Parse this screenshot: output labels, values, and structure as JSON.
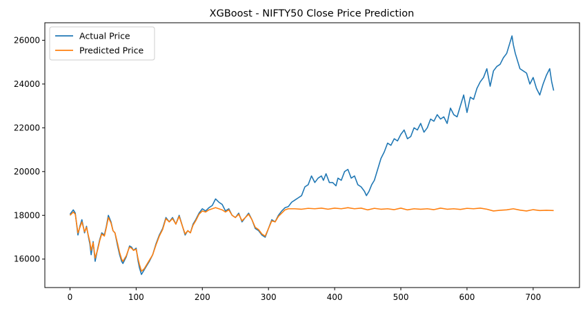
{
  "chart_data": {
    "type": "line",
    "title": "XGBoost - NIFTY50 Close Price Prediction",
    "xlabel": "",
    "ylabel": "",
    "xlim": [
      -38,
      770
    ],
    "ylim": [
      14700,
      26800
    ],
    "xticks": [
      0,
      100,
      200,
      300,
      400,
      500,
      600,
      700
    ],
    "yticks": [
      16000,
      18000,
      20000,
      22000,
      24000,
      26000
    ],
    "legend_position": "upper-left",
    "grid": false,
    "series": [
      {
        "name": "Actual Price",
        "color": "#1f77b4",
        "points": [
          [
            0,
            18050
          ],
          [
            5,
            18250
          ],
          [
            8,
            18100
          ],
          [
            12,
            17100
          ],
          [
            15,
            17500
          ],
          [
            18,
            17800
          ],
          [
            22,
            17200
          ],
          [
            25,
            17500
          ],
          [
            28,
            17000
          ],
          [
            30,
            16700
          ],
          [
            32,
            16200
          ],
          [
            35,
            16800
          ],
          [
            38,
            15900
          ],
          [
            42,
            16500
          ],
          [
            45,
            16900
          ],
          [
            48,
            17200
          ],
          [
            52,
            17100
          ],
          [
            55,
            17500
          ],
          [
            58,
            18000
          ],
          [
            62,
            17700
          ],
          [
            65,
            17300
          ],
          [
            68,
            17200
          ],
          [
            70,
            16900
          ],
          [
            72,
            16600
          ],
          [
            75,
            16200
          ],
          [
            78,
            15900
          ],
          [
            80,
            15800
          ],
          [
            85,
            16100
          ],
          [
            88,
            16400
          ],
          [
            90,
            16600
          ],
          [
            93,
            16550
          ],
          [
            96,
            16400
          ],
          [
            100,
            16500
          ],
          [
            103,
            15900
          ],
          [
            105,
            15600
          ],
          [
            108,
            15300
          ],
          [
            112,
            15500
          ],
          [
            116,
            15700
          ],
          [
            120,
            15900
          ],
          [
            125,
            16200
          ],
          [
            130,
            16700
          ],
          [
            135,
            17100
          ],
          [
            140,
            17400
          ],
          [
            145,
            17900
          ],
          [
            150,
            17700
          ],
          [
            155,
            17900
          ],
          [
            160,
            17600
          ],
          [
            165,
            18000
          ],
          [
            170,
            17500
          ],
          [
            174,
            17100
          ],
          [
            178,
            17300
          ],
          [
            182,
            17200
          ],
          [
            186,
            17600
          ],
          [
            190,
            17800
          ],
          [
            195,
            18100
          ],
          [
            200,
            18300
          ],
          [
            205,
            18200
          ],
          [
            210,
            18350
          ],
          [
            215,
            18450
          ],
          [
            220,
            18750
          ],
          [
            225,
            18600
          ],
          [
            230,
            18500
          ],
          [
            235,
            18200
          ],
          [
            240,
            18300
          ],
          [
            245,
            18000
          ],
          [
            250,
            17900
          ],
          [
            255,
            18100
          ],
          [
            260,
            17700
          ],
          [
            265,
            17900
          ],
          [
            270,
            18100
          ],
          [
            275,
            17800
          ],
          [
            280,
            17400
          ],
          [
            285,
            17300
          ],
          [
            290,
            17100
          ],
          [
            295,
            17000
          ],
          [
            300,
            17400
          ],
          [
            305,
            17800
          ],
          [
            310,
            17700
          ],
          [
            315,
            18000
          ],
          [
            320,
            18200
          ],
          [
            325,
            18350
          ],
          [
            330,
            18400
          ],
          [
            335,
            18600
          ],
          [
            340,
            18700
          ],
          [
            345,
            18800
          ],
          [
            350,
            18900
          ],
          [
            355,
            19300
          ],
          [
            360,
            19400
          ],
          [
            365,
            19800
          ],
          [
            370,
            19500
          ],
          [
            375,
            19700
          ],
          [
            380,
            19800
          ],
          [
            383,
            19600
          ],
          [
            387,
            19900
          ],
          [
            392,
            19500
          ],
          [
            397,
            19500
          ],
          [
            402,
            19350
          ],
          [
            405,
            19700
          ],
          [
            410,
            19600
          ],
          [
            415,
            20000
          ],
          [
            420,
            20100
          ],
          [
            425,
            19700
          ],
          [
            430,
            19800
          ],
          [
            435,
            19400
          ],
          [
            440,
            19300
          ],
          [
            445,
            19100
          ],
          [
            448,
            18900
          ],
          [
            452,
            19100
          ],
          [
            456,
            19400
          ],
          [
            460,
            19600
          ],
          [
            465,
            20100
          ],
          [
            470,
            20600
          ],
          [
            475,
            20900
          ],
          [
            480,
            21300
          ],
          [
            485,
            21200
          ],
          [
            490,
            21500
          ],
          [
            495,
            21400
          ],
          [
            500,
            21700
          ],
          [
            505,
            21900
          ],
          [
            510,
            21500
          ],
          [
            515,
            21600
          ],
          [
            520,
            22000
          ],
          [
            525,
            21900
          ],
          [
            530,
            22200
          ],
          [
            535,
            21800
          ],
          [
            540,
            22000
          ],
          [
            545,
            22400
          ],
          [
            550,
            22300
          ],
          [
            555,
            22600
          ],
          [
            560,
            22400
          ],
          [
            565,
            22500
          ],
          [
            570,
            22200
          ],
          [
            575,
            22900
          ],
          [
            580,
            22600
          ],
          [
            585,
            22500
          ],
          [
            590,
            23000
          ],
          [
            595,
            23500
          ],
          [
            600,
            22700
          ],
          [
            605,
            23400
          ],
          [
            610,
            23300
          ],
          [
            615,
            23800
          ],
          [
            620,
            24100
          ],
          [
            625,
            24300
          ],
          [
            630,
            24700
          ],
          [
            635,
            23900
          ],
          [
            640,
            24600
          ],
          [
            645,
            24800
          ],
          [
            650,
            24900
          ],
          [
            655,
            25200
          ],
          [
            660,
            25400
          ],
          [
            665,
            25900
          ],
          [
            668,
            26200
          ],
          [
            670,
            25800
          ],
          [
            673,
            25400
          ],
          [
            676,
            25100
          ],
          [
            680,
            24700
          ],
          [
            685,
            24600
          ],
          [
            690,
            24500
          ],
          [
            695,
            24000
          ],
          [
            700,
            24300
          ],
          [
            705,
            23800
          ],
          [
            710,
            23500
          ],
          [
            715,
            24000
          ],
          [
            720,
            24400
          ],
          [
            725,
            24700
          ],
          [
            728,
            24100
          ],
          [
            731,
            23700
          ]
        ]
      },
      {
        "name": "Predicted Price",
        "color": "#ff7f0e",
        "points": [
          [
            0,
            18000
          ],
          [
            5,
            18150
          ],
          [
            8,
            18050
          ],
          [
            12,
            17200
          ],
          [
            15,
            17450
          ],
          [
            18,
            17700
          ],
          [
            22,
            17250
          ],
          [
            25,
            17450
          ],
          [
            28,
            17050
          ],
          [
            30,
            16800
          ],
          [
            32,
            16400
          ],
          [
            35,
            16750
          ],
          [
            38,
            16050
          ],
          [
            42,
            16450
          ],
          [
            45,
            16850
          ],
          [
            48,
            17150
          ],
          [
            52,
            17050
          ],
          [
            55,
            17450
          ],
          [
            58,
            17900
          ],
          [
            62,
            17650
          ],
          [
            65,
            17300
          ],
          [
            68,
            17200
          ],
          [
            70,
            16950
          ],
          [
            72,
            16700
          ],
          [
            75,
            16300
          ],
          [
            78,
            16000
          ],
          [
            80,
            15900
          ],
          [
            85,
            16150
          ],
          [
            88,
            16400
          ],
          [
            90,
            16550
          ],
          [
            93,
            16500
          ],
          [
            96,
            16400
          ],
          [
            100,
            16450
          ],
          [
            103,
            16000
          ],
          [
            105,
            15750
          ],
          [
            108,
            15450
          ],
          [
            112,
            15550
          ],
          [
            116,
            15750
          ],
          [
            120,
            15950
          ],
          [
            125,
            16200
          ],
          [
            130,
            16650
          ],
          [
            135,
            17050
          ],
          [
            140,
            17350
          ],
          [
            145,
            17850
          ],
          [
            150,
            17700
          ],
          [
            155,
            17850
          ],
          [
            160,
            17600
          ],
          [
            165,
            17950
          ],
          [
            170,
            17500
          ],
          [
            174,
            17150
          ],
          [
            178,
            17300
          ],
          [
            182,
            17200
          ],
          [
            186,
            17550
          ],
          [
            190,
            17750
          ],
          [
            195,
            18050
          ],
          [
            200,
            18200
          ],
          [
            205,
            18150
          ],
          [
            210,
            18250
          ],
          [
            215,
            18300
          ],
          [
            220,
            18350
          ],
          [
            225,
            18300
          ],
          [
            230,
            18250
          ],
          [
            235,
            18150
          ],
          [
            240,
            18250
          ],
          [
            245,
            18000
          ],
          [
            250,
            17900
          ],
          [
            255,
            18050
          ],
          [
            260,
            17750
          ],
          [
            265,
            17900
          ],
          [
            270,
            18050
          ],
          [
            275,
            17800
          ],
          [
            280,
            17450
          ],
          [
            285,
            17350
          ],
          [
            290,
            17150
          ],
          [
            295,
            17050
          ],
          [
            300,
            17400
          ],
          [
            305,
            17750
          ],
          [
            310,
            17700
          ],
          [
            315,
            17950
          ],
          [
            320,
            18100
          ],
          [
            325,
            18250
          ],
          [
            330,
            18300
          ],
          [
            340,
            18300
          ],
          [
            350,
            18280
          ],
          [
            360,
            18320
          ],
          [
            370,
            18300
          ],
          [
            380,
            18330
          ],
          [
            390,
            18280
          ],
          [
            400,
            18330
          ],
          [
            410,
            18300
          ],
          [
            420,
            18350
          ],
          [
            430,
            18300
          ],
          [
            440,
            18330
          ],
          [
            450,
            18250
          ],
          [
            460,
            18320
          ],
          [
            470,
            18280
          ],
          [
            480,
            18300
          ],
          [
            490,
            18260
          ],
          [
            500,
            18330
          ],
          [
            510,
            18250
          ],
          [
            520,
            18300
          ],
          [
            530,
            18280
          ],
          [
            540,
            18300
          ],
          [
            550,
            18260
          ],
          [
            560,
            18330
          ],
          [
            570,
            18280
          ],
          [
            580,
            18300
          ],
          [
            590,
            18270
          ],
          [
            600,
            18320
          ],
          [
            610,
            18300
          ],
          [
            620,
            18330
          ],
          [
            630,
            18280
          ],
          [
            640,
            18200
          ],
          [
            650,
            18230
          ],
          [
            660,
            18250
          ],
          [
            670,
            18300
          ],
          [
            680,
            18240
          ],
          [
            690,
            18200
          ],
          [
            700,
            18260
          ],
          [
            710,
            18220
          ],
          [
            720,
            18230
          ],
          [
            731,
            18220
          ]
        ]
      }
    ]
  }
}
